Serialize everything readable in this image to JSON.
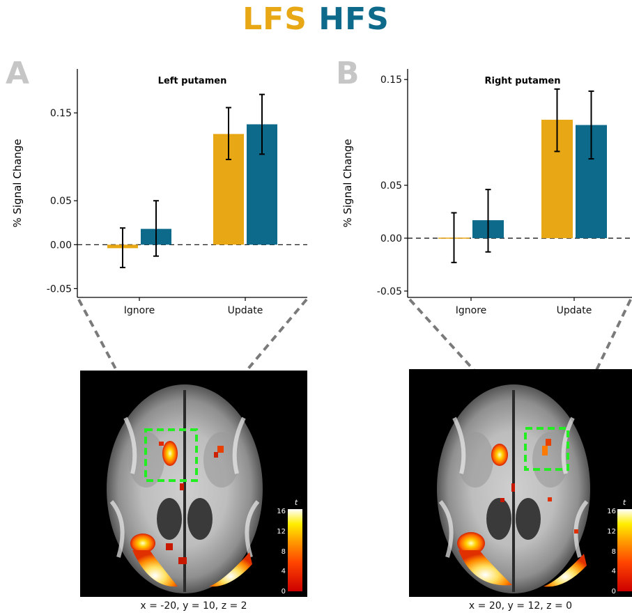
{
  "title": {
    "part1": "LFS",
    "part2": "HFS"
  },
  "colors": {
    "LFS": "#E8A815",
    "HFS": "#0E6A8B",
    "roi_box": "#22ee22",
    "connector": "#7a7a7a"
  },
  "panels": [
    {
      "letter": "A",
      "coord_label": "x = -20, y = 10, z = 2"
    },
    {
      "letter": "B",
      "coord_label": "x = 20, y = 12, z = 0"
    }
  ],
  "colorbar": {
    "label": "t",
    "ticks": [
      "16",
      "12",
      "8",
      "4",
      "0"
    ]
  },
  "chart_data": [
    {
      "type": "bar",
      "title": "Left putamen",
      "ylabel": "% Signal Change",
      "categories": [
        "Ignore",
        "Update"
      ],
      "ylim": [
        -0.06,
        0.2
      ],
      "yticks": [
        -0.05,
        0.0,
        0.05,
        0.15
      ],
      "ytick_labels": [
        "-0.05",
        "0.00",
        "0.05",
        "0.15"
      ],
      "series": [
        {
          "name": "LFS",
          "values": [
            -0.004,
            0.126
          ],
          "err_low": [
            -0.026,
            0.097
          ],
          "err_high": [
            0.019,
            0.156
          ]
        },
        {
          "name": "HFS",
          "values": [
            0.018,
            0.137
          ],
          "err_low": [
            -0.013,
            0.103
          ],
          "err_high": [
            0.05,
            0.171
          ]
        }
      ],
      "zero_line": "dashed",
      "grid": false
    },
    {
      "type": "bar",
      "title": "Right putamen",
      "ylabel": "% Signal Change",
      "categories": [
        "Ignore",
        "Update"
      ],
      "ylim": [
        -0.056,
        0.16
      ],
      "yticks": [
        -0.05,
        0.0,
        0.05,
        0.15
      ],
      "ytick_labels": [
        "-0.05",
        "0.00",
        "0.05",
        "0.15"
      ],
      "series": [
        {
          "name": "LFS",
          "values": [
            0.0005,
            0.112
          ],
          "err_low": [
            -0.023,
            0.082
          ],
          "err_high": [
            0.024,
            0.141
          ]
        },
        {
          "name": "HFS",
          "values": [
            0.017,
            0.107
          ],
          "err_low": [
            -0.013,
            0.075
          ],
          "err_high": [
            0.046,
            0.139
          ]
        }
      ],
      "zero_line": "dashed",
      "grid": false
    }
  ]
}
